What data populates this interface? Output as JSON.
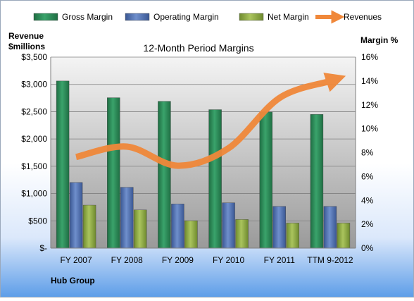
{
  "chart_data": {
    "type": "bar",
    "title": "12-Month Period Margins",
    "company": "Hub Group",
    "left_axis_label_line1": "Revenue",
    "left_axis_label_line2": "$millions",
    "right_axis_label": "Margin %",
    "categories": [
      "FY 2007",
      "FY 2008",
      "FY 2009",
      "FY 2010",
      "FY 2011",
      "TTM 9-2012"
    ],
    "left_ticks": [
      {
        "value": 0,
        "label": "$-"
      },
      {
        "value": 500,
        "label": "$500"
      },
      {
        "value": 1000,
        "label": "$1,000"
      },
      {
        "value": 1500,
        "label": "$1,500"
      },
      {
        "value": 2000,
        "label": "$2,000"
      },
      {
        "value": 2500,
        "label": "$2,500"
      },
      {
        "value": 3000,
        "label": "$3,000"
      },
      {
        "value": 3500,
        "label": "$3,500"
      }
    ],
    "right_ticks": [
      {
        "value": 0,
        "label": "0%"
      },
      {
        "value": 2,
        "label": "2%"
      },
      {
        "value": 4,
        "label": "4%"
      },
      {
        "value": 6,
        "label": "6%"
      },
      {
        "value": 8,
        "label": "8%"
      },
      {
        "value": 10,
        "label": "10%"
      },
      {
        "value": 12,
        "label": "12%"
      },
      {
        "value": 14,
        "label": "14%"
      },
      {
        "value": 16,
        "label": "16%"
      }
    ],
    "ylim_left": [
      0,
      3500
    ],
    "ylim_right": [
      0,
      16
    ],
    "grid": true,
    "legend_position": "top",
    "series": [
      {
        "name": "Gross Margin",
        "axis": "right",
        "kind": "bar",
        "color": "#2e8b57",
        "values": [
          14.0,
          12.6,
          12.3,
          11.6,
          11.4,
          11.2
        ]
      },
      {
        "name": "Operating Margin",
        "axis": "right",
        "kind": "bar",
        "color": "#4f6fb0",
        "values": [
          5.5,
          5.1,
          3.7,
          3.8,
          3.5,
          3.5
        ]
      },
      {
        "name": "Net Margin",
        "axis": "right",
        "kind": "bar",
        "color": "#8faa46",
        "values": [
          3.6,
          3.2,
          2.3,
          2.4,
          2.1,
          2.1
        ]
      },
      {
        "name": "Revenues",
        "axis": "left",
        "kind": "line",
        "color": "#f0883a",
        "values": [
          1670,
          1860,
          1510,
          1830,
          2750,
          3060
        ]
      }
    ]
  }
}
